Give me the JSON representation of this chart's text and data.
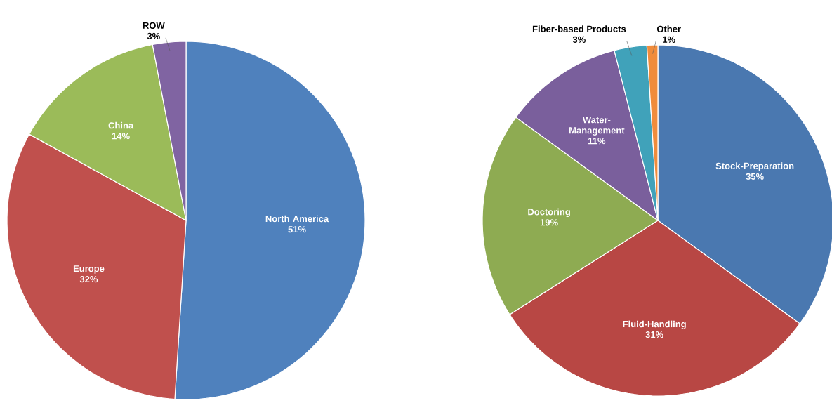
{
  "chart_data": [
    {
      "type": "pie",
      "categories": [
        "North America",
        "Europe",
        "China",
        "ROW"
      ],
      "values": [
        51,
        32,
        14,
        3
      ],
      "value_labels": [
        "51%",
        "32%",
        "14%",
        "3%"
      ],
      "colors": [
        "#4f81bd",
        "#c0504d",
        "#9bbb59",
        "#8064a2"
      ]
    },
    {
      "type": "pie",
      "categories": [
        "Stock-Preparation",
        "Fluid-Handling",
        "Doctoring",
        "Water-Management",
        "Fiber-based Products",
        "Other"
      ],
      "values": [
        35,
        31,
        19,
        11,
        3,
        1
      ],
      "value_labels": [
        "35%",
        "31%",
        "19%",
        "11%",
        "3%",
        "1%"
      ],
      "colors": [
        "#4a78b0",
        "#b84744",
        "#8eab52",
        "#7a5f9c",
        "#40a2ba",
        "#f08c3c"
      ]
    }
  ]
}
